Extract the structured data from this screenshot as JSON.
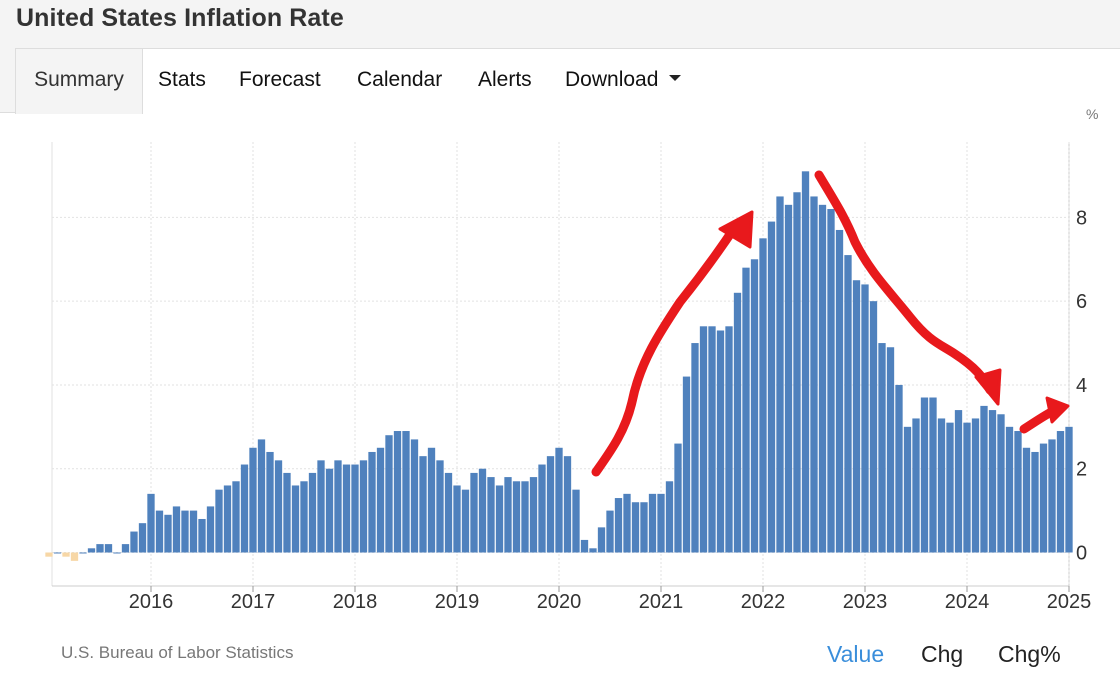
{
  "header": {
    "title": "United States Inflation Rate"
  },
  "tabs": [
    {
      "label": "Summary",
      "active": true
    },
    {
      "label": "Stats"
    },
    {
      "label": "Forecast"
    },
    {
      "label": "Calendar"
    },
    {
      "label": "Alerts"
    },
    {
      "label": "Download",
      "has_dropdown": true
    }
  ],
  "footer": {
    "source": "U.S. Bureau of Labor Statistics",
    "modes": [
      {
        "label": "Value",
        "active": true
      },
      {
        "label": "Chg"
      },
      {
        "label": "Chg%"
      }
    ]
  },
  "chart_data": {
    "type": "bar",
    "unit_label": "%",
    "x_tick_labels": [
      "2016",
      "2017",
      "2018",
      "2019",
      "2020",
      "2021",
      "2022",
      "2023",
      "2024",
      "2025"
    ],
    "y_tick_labels": [
      "0",
      "2",
      "4",
      "6",
      "8"
    ],
    "ylim": [
      -0.8,
      9.8
    ],
    "grid": true,
    "y_axis_position": "right",
    "start": "2015-01",
    "end": "2025-01",
    "values": [
      -0.1,
      0.0,
      -0.1,
      -0.2,
      0.0,
      0.1,
      0.2,
      0.2,
      0.0,
      0.2,
      0.5,
      0.7,
      1.4,
      1.0,
      0.9,
      1.1,
      1.0,
      1.0,
      0.8,
      1.1,
      1.5,
      1.6,
      1.7,
      2.1,
      2.5,
      2.7,
      2.4,
      2.2,
      1.9,
      1.6,
      1.7,
      1.9,
      2.2,
      2.0,
      2.2,
      2.1,
      2.1,
      2.2,
      2.4,
      2.5,
      2.8,
      2.9,
      2.9,
      2.7,
      2.3,
      2.5,
      2.2,
      1.9,
      1.6,
      1.5,
      1.9,
      2.0,
      1.8,
      1.6,
      1.8,
      1.7,
      1.7,
      1.8,
      2.1,
      2.3,
      2.5,
      2.3,
      1.5,
      0.3,
      0.1,
      0.6,
      1.0,
      1.3,
      1.4,
      1.2,
      1.2,
      1.4,
      1.4,
      1.7,
      2.6,
      4.2,
      5.0,
      5.4,
      5.4,
      5.3,
      5.4,
      6.2,
      6.8,
      7.0,
      7.5,
      7.9,
      8.5,
      8.3,
      8.6,
      9.1,
      8.5,
      8.3,
      8.2,
      7.7,
      7.1,
      6.5,
      6.4,
      6.0,
      5.0,
      4.9,
      4.0,
      3.0,
      3.2,
      3.7,
      3.7,
      3.2,
      3.1,
      3.4,
      3.1,
      3.2,
      3.5,
      3.4,
      3.3,
      3.0,
      2.9,
      2.5,
      2.4,
      2.6,
      2.7,
      2.9,
      3.0
    ],
    "colors": {
      "positive": "#4f81bd",
      "negative": "#f7d7a6",
      "annotation": "#e8191c",
      "grid": "#e2e2e2",
      "axis": "#cccccc"
    }
  }
}
